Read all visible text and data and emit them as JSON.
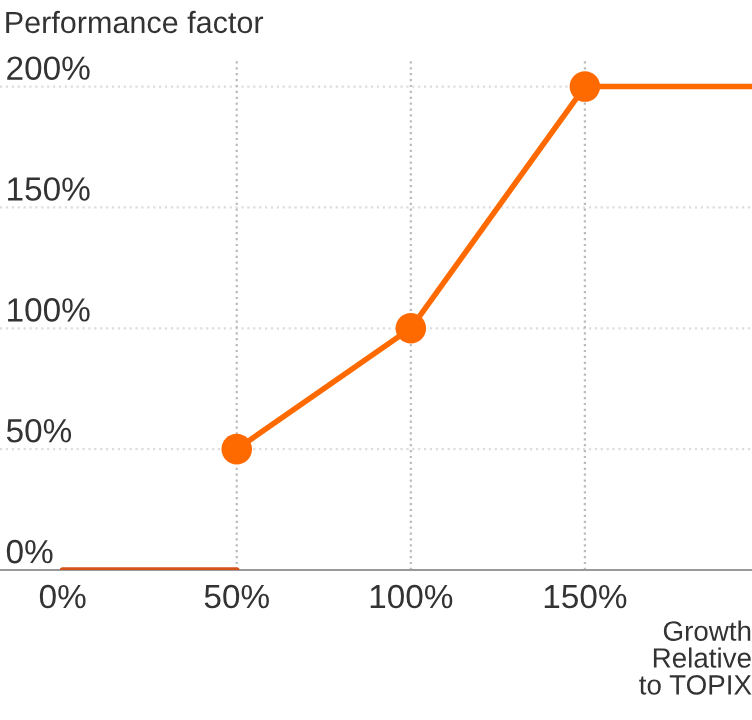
{
  "chart_data": {
    "type": "line",
    "ylabel": "Performance factor",
    "xlabel": "Growth\nRelative\nto TOPIX",
    "series": [
      {
        "x": [
          0,
          50
        ],
        "values": [
          0,
          0
        ],
        "color": "#d4541c",
        "marker": "none"
      },
      {
        "x": [
          50,
          100,
          150
        ],
        "values": [
          50,
          100,
          200
        ],
        "color": "#ff6a00",
        "marker": "circle"
      },
      {
        "x": [
          150,
          198
        ],
        "values": [
          200,
          200
        ],
        "color": "#ff6a00",
        "marker": "none"
      }
    ],
    "xlim": [
      -18,
      198
    ],
    "xticks": [
      {
        "value": 0,
        "label": "0%"
      },
      {
        "value": 50,
        "label": "50%"
      },
      {
        "value": 100,
        "label": "100%"
      },
      {
        "value": 150,
        "label": "150%"
      }
    ],
    "ylim": [
      0,
      211
    ],
    "yticks": [
      {
        "value": 0,
        "label": "0%"
      },
      {
        "value": 50,
        "label": "50%"
      },
      {
        "value": 100,
        "label": "100%"
      },
      {
        "value": 150,
        "label": "150%"
      },
      {
        "value": 200,
        "label": "200%"
      }
    ],
    "grid": "y",
    "line_style": "solid",
    "ref_lines": [
      {
        "axis": "x",
        "value": 50,
        "color": "#bbbbbb",
        "line_style": "dotted"
      },
      {
        "axis": "x",
        "value": 100,
        "color": "#bbbbbb",
        "line_style": "dotted"
      },
      {
        "axis": "x",
        "value": 150,
        "color": "#bbbbbb",
        "line_style": "dotted"
      }
    ]
  }
}
